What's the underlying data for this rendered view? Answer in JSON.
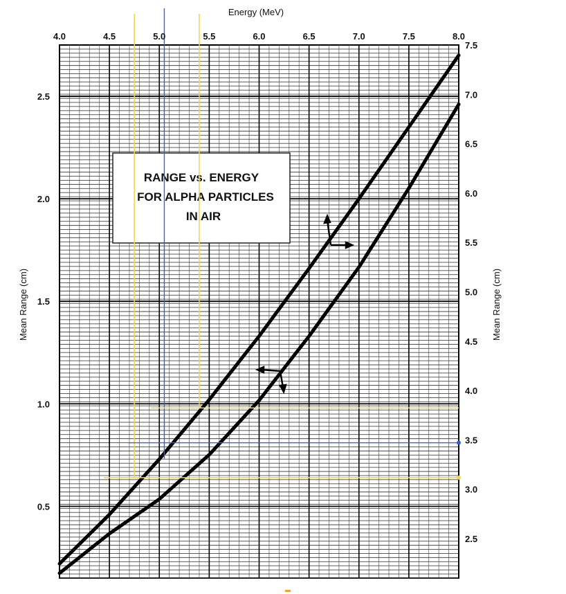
{
  "chart_data": {
    "type": "line",
    "title": [
      "RANGE vs. ENERGY",
      "FOR  ALPHA  PARTICLES",
      "IN  AIR"
    ],
    "xlabel": "Energy (MeV)",
    "ylabel_left": "Mean Range (cm)",
    "ylabel_right": "Mean Range (cm)",
    "x_ticks": [
      "4.0",
      "4.5",
      "5.0",
      "5.5",
      "6.0",
      "6.5",
      "7.0",
      "7.5",
      "8.0"
    ],
    "x_range": [
      4.0,
      8.0
    ],
    "y_left_ticks": [
      "0.5",
      "1.0",
      "1.5",
      "2.0",
      "2.5"
    ],
    "y_left_range": [
      0.15,
      2.75
    ],
    "y_right_ticks": [
      "2.5",
      "3.0",
      "3.5",
      "4.0",
      "4.5",
      "5.0",
      "5.5",
      "6.0",
      "6.5",
      "7.0",
      "7.5"
    ],
    "y_right_range": [
      2.1,
      7.5
    ],
    "grid": true,
    "series": [
      {
        "axes": "energy 4.0-8.0 (top) vs left range",
        "x": [
          4.0,
          4.5,
          5.0,
          5.5,
          6.0,
          6.5,
          7.0,
          7.5,
          8.0
        ],
        "y": [
          0.22,
          0.46,
          0.73,
          1.02,
          1.33,
          1.66,
          2.0,
          2.35,
          2.7
        ]
      },
      {
        "axes": "energy 4.0-8.0 (top) vs right range",
        "x": [
          4.0,
          4.5,
          5.0,
          5.5,
          6.0,
          6.5,
          7.0,
          7.5,
          8.0
        ],
        "y": [
          2.15,
          2.55,
          2.9,
          3.35,
          3.9,
          4.55,
          5.25,
          6.05,
          6.9
        ]
      }
    ],
    "annotations": {
      "yellow_vertical_lines_energy": [
        4.75,
        5.4
      ],
      "blue_vertical_line_energy": 5.05,
      "yellow_horizontal_lines_range_left": [
        0.98,
        0.64
      ],
      "blue_horizontal_line_range_left": 0.81,
      "line_colors": {
        "yellow": "#f2d24b",
        "blue": "#3a5bd9"
      }
    }
  }
}
